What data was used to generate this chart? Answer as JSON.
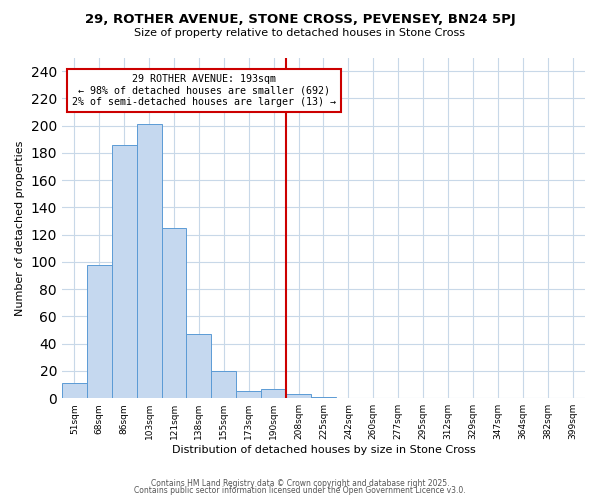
{
  "title": "29, ROTHER AVENUE, STONE CROSS, PEVENSEY, BN24 5PJ",
  "subtitle": "Size of property relative to detached houses in Stone Cross",
  "xlabel": "Distribution of detached houses by size in Stone Cross",
  "ylabel": "Number of detached properties",
  "bar_categories": [
    "51sqm",
    "68sqm",
    "86sqm",
    "103sqm",
    "121sqm",
    "138sqm",
    "155sqm",
    "173sqm",
    "190sqm",
    "208sqm",
    "225sqm",
    "242sqm",
    "260sqm",
    "277sqm",
    "295sqm",
    "312sqm",
    "329sqm",
    "347sqm",
    "364sqm",
    "382sqm",
    "399sqm"
  ],
  "bar_values": [
    11,
    98,
    186,
    201,
    125,
    47,
    20,
    5,
    7,
    3,
    1,
    0,
    0,
    0,
    0,
    0,
    0,
    0,
    0,
    0,
    0
  ],
  "bar_color": "#c5d8ef",
  "bar_edge_color": "#5b9bd5",
  "red_line_x": 8.5,
  "red_color": "#cc0000",
  "ylim": [
    0,
    250
  ],
  "yticks": [
    0,
    20,
    40,
    60,
    80,
    100,
    120,
    140,
    160,
    180,
    200,
    220,
    240
  ],
  "footer1": "Contains HM Land Registry data © Crown copyright and database right 2025.",
  "footer2": "Contains public sector information licensed under the Open Government Licence v3.0.",
  "background_color": "#ffffff",
  "grid_color": "#c8d8e8"
}
